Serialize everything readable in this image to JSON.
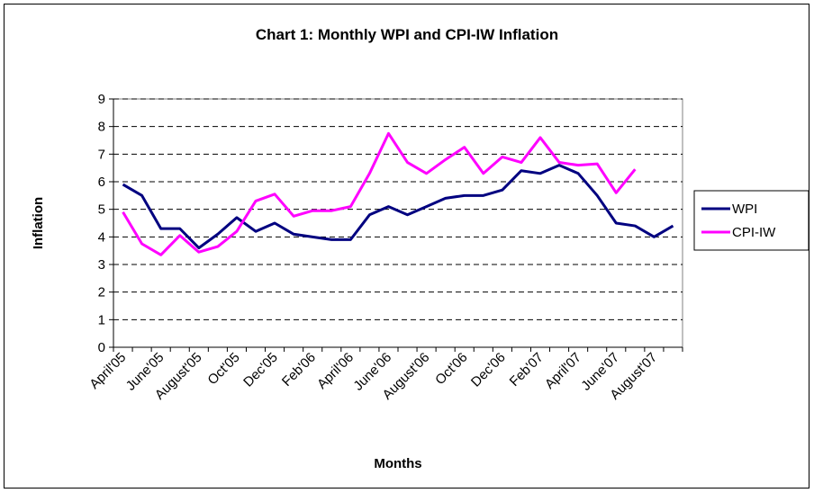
{
  "chart_data": {
    "type": "line",
    "title": "Chart 1: Monthly WPI and CPI-IW Inflation",
    "xlabel": "Months",
    "ylabel": "Inflation",
    "categories": [
      "April'05",
      null,
      "June'05",
      null,
      "August'05",
      null,
      "Oct'05",
      null,
      "Dec'05",
      null,
      "Feb'06",
      null,
      "April'06",
      null,
      "June'06",
      null,
      "August'06",
      null,
      "Oct'06",
      null,
      "Dec'06",
      null,
      "Feb'07",
      null,
      "April'07",
      null,
      "June'07",
      null,
      "August'07",
      null
    ],
    "series": [
      {
        "name": "WPI",
        "color": "#000080",
        "values": [
          5.9,
          5.5,
          4.3,
          4.3,
          3.6,
          4.1,
          4.7,
          4.2,
          4.5,
          4.1,
          4.0,
          3.9,
          3.9,
          4.8,
          5.1,
          4.8,
          5.1,
          5.4,
          5.5,
          5.5,
          5.7,
          6.4,
          6.3,
          6.6,
          6.3,
          5.5,
          4.5,
          4.4,
          4.0,
          4.4
        ]
      },
      {
        "name": "CPI-IW",
        "color": "#ff00ff",
        "values": [
          4.9,
          3.75,
          3.35,
          4.05,
          3.45,
          3.65,
          4.2,
          5.3,
          5.55,
          4.75,
          4.95,
          4.95,
          5.1,
          6.3,
          7.75,
          6.7,
          6.3,
          6.8,
          7.25,
          6.3,
          6.9,
          6.7,
          7.6,
          6.7,
          6.6,
          6.65,
          5.6,
          6.45,
          null,
          null
        ]
      }
    ],
    "ylim": [
      0,
      9
    ],
    "yticks": [
      0,
      1,
      2,
      3,
      4,
      5,
      6,
      7,
      8,
      9
    ],
    "grid": true,
    "legend": "right"
  }
}
